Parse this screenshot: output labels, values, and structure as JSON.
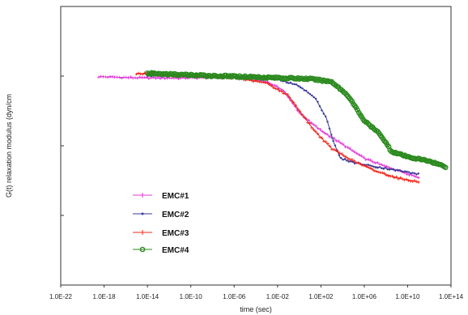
{
  "chart_data": {
    "type": "line",
    "title": "",
    "xlabel": "time (sec)",
    "ylabel": "G(t) relaxation modulus (dyn/cm",
    "x_scale": "log10",
    "xlim_exponent": [
      -22,
      14
    ],
    "x_tick_labels": [
      "1.0E-22",
      "1.0E-18",
      "1.0E-14",
      "1.0E-10",
      "1.0E-06",
      "1.0E-02",
      "1.0E+02",
      "1.0E+06",
      "1.0E+10",
      "1.0E+14"
    ],
    "x_tick_exponents": [
      -22,
      -18,
      -14,
      -10,
      -6,
      -2,
      2,
      6,
      10,
      14
    ],
    "y_tick_labels": [],
    "y_relative_ticks": [
      0.25,
      0.5,
      0.75
    ],
    "ylim": [
      0,
      1
    ],
    "grid": false,
    "legend_position": "lower-left",
    "series": [
      {
        "name": "EMC#1",
        "color": "#e33ad8",
        "marker": "plus",
        "points": [
          [
            -18.5,
            0.748
          ],
          [
            -15,
            0.744
          ],
          [
            -11,
            0.743
          ],
          [
            -8,
            0.745
          ],
          [
            -5,
            0.744
          ],
          [
            -3,
            0.73
          ],
          [
            -1.5,
            0.7
          ],
          [
            0,
            0.62
          ],
          [
            1,
            0.585
          ],
          [
            2,
            0.555
          ],
          [
            4,
            0.505
          ],
          [
            6,
            0.455
          ],
          [
            8,
            0.425
          ],
          [
            10,
            0.4
          ],
          [
            11,
            0.386
          ]
        ]
      },
      {
        "name": "EMC#2",
        "color": "#3a3a98",
        "marker": "dot",
        "points": [
          [
            -14,
            0.752
          ],
          [
            -11,
            0.751
          ],
          [
            -8,
            0.748
          ],
          [
            -5,
            0.746
          ],
          [
            -2,
            0.738
          ],
          [
            0,
            0.715
          ],
          [
            1.5,
            0.67
          ],
          [
            2.5,
            0.6
          ],
          [
            3.2,
            0.51
          ],
          [
            3.8,
            0.455
          ],
          [
            5,
            0.44
          ],
          [
            7,
            0.425
          ],
          [
            9,
            0.412
          ],
          [
            11,
            0.398
          ]
        ]
      },
      {
        "name": "EMC#3",
        "color": "#f0281e",
        "marker": "plus",
        "points": [
          [
            -15,
            0.76
          ],
          [
            -12,
            0.753
          ],
          [
            -9,
            0.75
          ],
          [
            -6,
            0.744
          ],
          [
            -3,
            0.725
          ],
          [
            -1,
            0.68
          ],
          [
            0.5,
            0.6
          ],
          [
            1.5,
            0.55
          ],
          [
            3,
            0.49
          ],
          [
            5,
            0.445
          ],
          [
            7,
            0.41
          ],
          [
            9,
            0.385
          ],
          [
            11,
            0.37
          ]
        ]
      },
      {
        "name": "EMC#4",
        "color": "#2b8a1e",
        "marker": "circle",
        "points": [
          [
            -14,
            0.76
          ],
          [
            -11,
            0.755
          ],
          [
            -8,
            0.751
          ],
          [
            -5,
            0.748
          ],
          [
            -2,
            0.744
          ],
          [
            1,
            0.74
          ],
          [
            3,
            0.73
          ],
          [
            4.5,
            0.68
          ],
          [
            6,
            0.59
          ],
          [
            7.5,
            0.54
          ],
          [
            8.5,
            0.48
          ],
          [
            10,
            0.46
          ],
          [
            12,
            0.445
          ],
          [
            13.5,
            0.425
          ]
        ]
      }
    ]
  }
}
